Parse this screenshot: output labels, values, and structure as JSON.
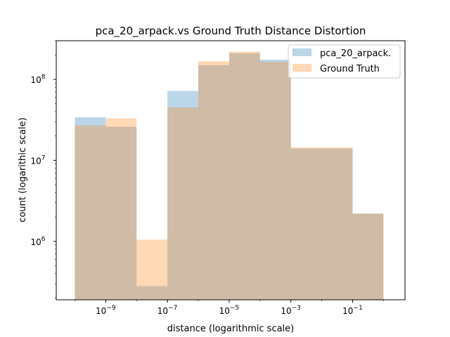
{
  "chart_data": {
    "type": "bar",
    "title": "pca_20_arpack.vs Ground Truth Distance Distortion",
    "xlabel": "distance (logarithmic scale)",
    "ylabel": "count (logarithic scale)",
    "x_scale": "log",
    "y_scale": "log",
    "xlim": [
      2.5e-11,
      5.0
    ],
    "ylim": [
      190000.0,
      300000000.0
    ],
    "bin_edges": [
      1e-10,
      1e-09,
      1e-08,
      1e-07,
      1e-06,
      1e-05,
      0.0001,
      0.001,
      0.01,
      0.1,
      1
    ],
    "x_ticks": [
      {
        "value": 1e-09,
        "exp": "−9"
      },
      {
        "value": 1e-07,
        "exp": "−7"
      },
      {
        "value": 1e-05,
        "exp": "−5"
      },
      {
        "value": 0.001,
        "exp": "−3"
      },
      {
        "value": 0.1,
        "exp": "−1"
      }
    ],
    "y_ticks": [
      {
        "value": 1000000.0,
        "exp": "6"
      },
      {
        "value": 10000000.0,
        "exp": "7"
      },
      {
        "value": 100000000.0,
        "exp": "8"
      }
    ],
    "series": [
      {
        "name": "pca_20_arpack.",
        "color": "#1f77b4",
        "values": [
          34000000,
          26000000,
          280000,
          72000000,
          150000000,
          210000000,
          175000000,
          14000000,
          14000000,
          2200000
        ]
      },
      {
        "name": "Ground Truth",
        "color": "#ff7f0e",
        "values": [
          27000000,
          33000000,
          1050000,
          45000000,
          167000000,
          220000000,
          165000000,
          14500000,
          14500000,
          2200000
        ]
      }
    ],
    "legend": {
      "position": "top-right"
    }
  }
}
